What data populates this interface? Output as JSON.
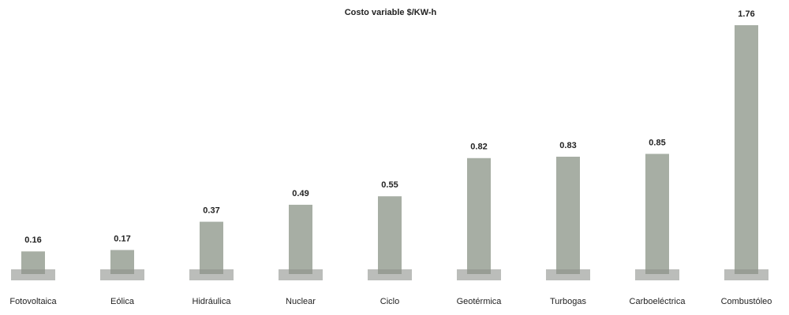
{
  "chart_data": {
    "type": "bar",
    "title": "Costo variable $/KW-h",
    "categories": [
      "Fotovoltaica",
      "Eólica",
      "Hidráulica",
      "Nuclear",
      "Ciclo",
      "Geotérmica",
      "Turbogas",
      "Carboeléctrica",
      "Combustóleo"
    ],
    "values": [
      0.16,
      0.17,
      0.37,
      0.49,
      0.55,
      0.82,
      0.83,
      0.85,
      1.76
    ],
    "color": "#a7aea4"
  }
}
